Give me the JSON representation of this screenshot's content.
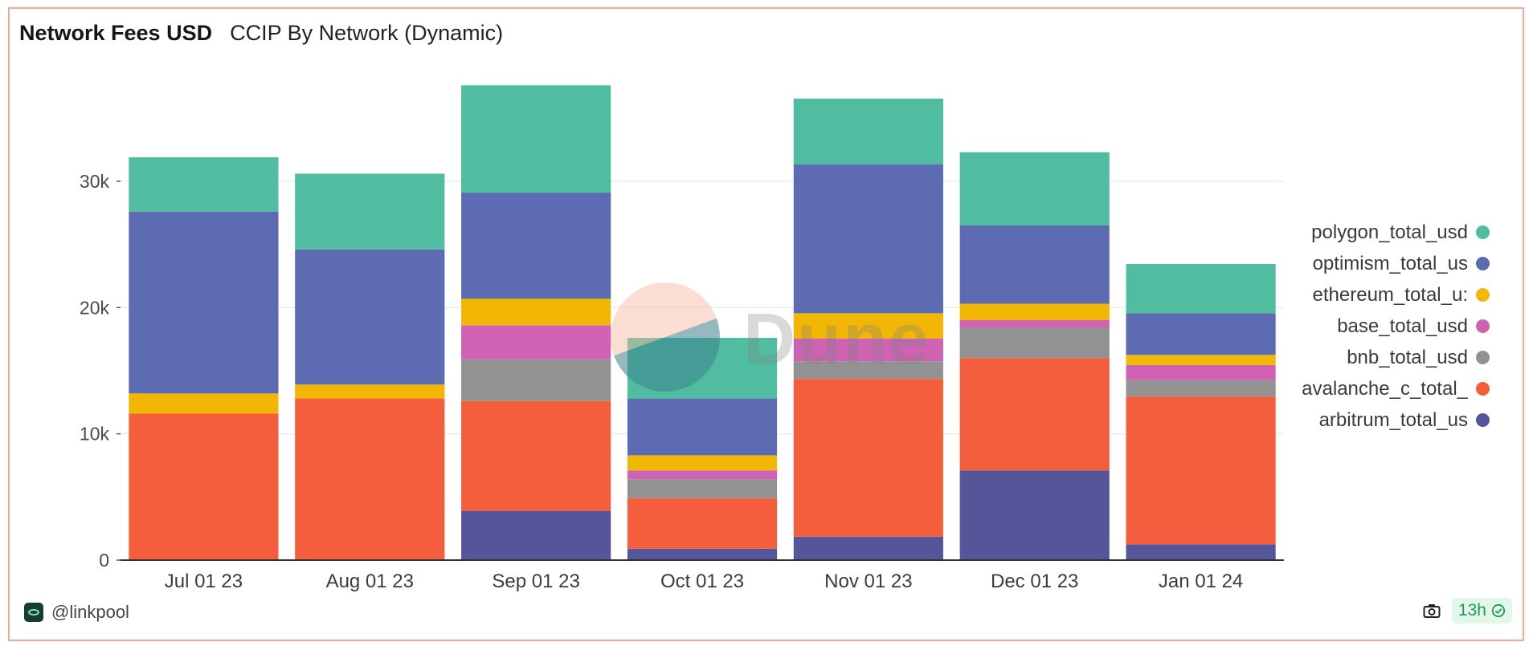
{
  "header": {
    "title": "Network Fees USD",
    "subtitle": "CCIP By Network (Dynamic)"
  },
  "footer": {
    "author": "@linkpool",
    "freshness": "13h"
  },
  "watermark": {
    "text": "Dune"
  },
  "icons": {
    "logo": "dune-logo-icon",
    "camera": "camera-icon",
    "check": "check-circle-icon"
  },
  "legend": [
    {
      "label": "polygon_total_usd",
      "color": "#50bda1"
    },
    {
      "label": "optimism_total_us",
      "color": "#5d6bb3"
    },
    {
      "label": "ethereum_total_u:",
      "color": "#f2b705"
    },
    {
      "label": "base_total_usd",
      "color": "#cf62b3"
    },
    {
      "label": "bnb_total_usd",
      "color": "#929292"
    },
    {
      "label": "avalanche_c_total_",
      "color": "#f45e3c"
    },
    {
      "label": "arbitrum_total_us",
      "color": "#55569a"
    }
  ],
  "chart_data": {
    "type": "bar",
    "stacked": true,
    "categories": [
      "Jul 01 23",
      "Aug 01 23",
      "Sep 01 23",
      "Oct 01 23",
      "Nov 01 23",
      "Dec 01 23",
      "Jan 01 24"
    ],
    "yticks": [
      0,
      10000,
      20000,
      30000
    ],
    "ytick_labels": [
      "0",
      "10k",
      "20k",
      "30k"
    ],
    "ylim": [
      0,
      38000
    ],
    "grid": true,
    "legend_position": "right",
    "series": [
      {
        "name": "arbitrum_total_usd",
        "color": "#55569a",
        "values": [
          0,
          0,
          3900,
          900,
          1850,
          7100,
          1250
        ]
      },
      {
        "name": "avalanche_c_total_usd",
        "color": "#f45e3c",
        "values": [
          11600,
          12800,
          8700,
          4000,
          12500,
          8900,
          11700
        ]
      },
      {
        "name": "bnb_total_usd",
        "color": "#929292",
        "values": [
          0,
          0,
          3300,
          1500,
          1400,
          2400,
          1300
        ]
      },
      {
        "name": "base_total_usd",
        "color": "#cf62b3",
        "values": [
          0,
          0,
          2700,
          700,
          1800,
          600,
          1200
        ]
      },
      {
        "name": "ethereum_total_usd",
        "color": "#f2b705",
        "values": [
          1600,
          1100,
          2100,
          1200,
          2000,
          1300,
          800
        ]
      },
      {
        "name": "optimism_total_usd",
        "color": "#5d6bb3",
        "values": [
          14400,
          10700,
          8400,
          4500,
          11800,
          6200,
          3300
        ]
      },
      {
        "name": "polygon_total_usd",
        "color": "#50bda1",
        "values": [
          4300,
          6000,
          8500,
          4800,
          5200,
          5800,
          3900
        ]
      }
    ]
  }
}
